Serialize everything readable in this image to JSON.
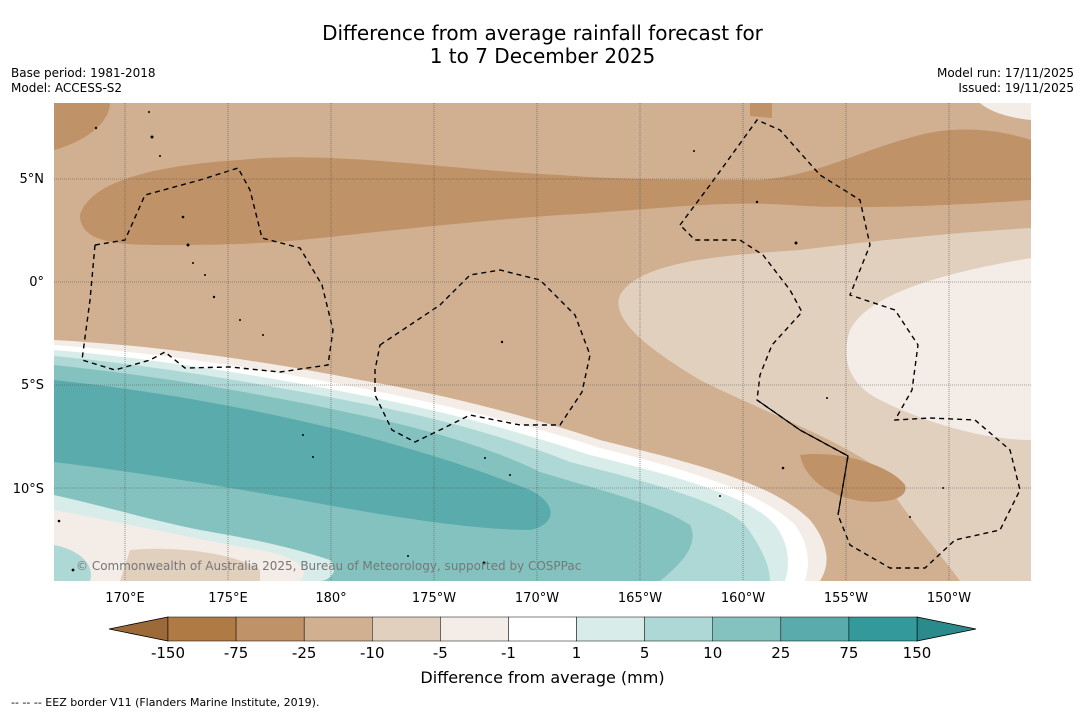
{
  "title_line1": "Difference from average rainfall forecast for",
  "title_line2": "1 to 7 December 2025",
  "base_period": "Base period: 1981-2018",
  "model": "Model: ACCESS-S2",
  "model_run": "Model run: 17/11/2025",
  "issued": "Issued: 19/11/2025",
  "copyright": "© Commonwealth of Australia 2025, Bureau of Meteorology, supported by COSPPac",
  "lat_labels": [
    "5°N",
    "0°",
    "5°S",
    "10°S"
  ],
  "lon_labels": [
    "170°E",
    "175°E",
    "180°",
    "175°W",
    "170°W",
    "165°W",
    "160°W",
    "155°W",
    "150°W"
  ],
  "legend": {
    "title": "Difference from average (mm)",
    "ticks": [
      "-150",
      "-75",
      "-25",
      "-10",
      "-5",
      "-1",
      "1",
      "5",
      "10",
      "25",
      "75",
      "150"
    ],
    "colors": [
      "#9c6a39",
      "#b07a45",
      "#c09268",
      "#d0b090",
      "#e2d0be",
      "#f4ece6",
      "#ffffff",
      "#d8ecea",
      "#aed8d6",
      "#84c2c0",
      "#5aacac",
      "#34999a",
      "#2a8a8c"
    ]
  },
  "footer": "--  --  -- EEZ border V11 (Flanders Marine Institute, 2019)."
}
